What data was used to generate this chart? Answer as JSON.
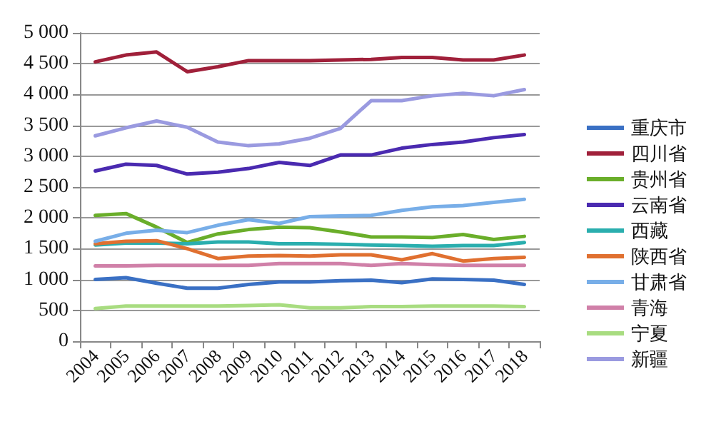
{
  "chart_data": {
    "type": "line",
    "categories": [
      "2004",
      "2005",
      "2006",
      "2007",
      "2008",
      "2009",
      "2010",
      "2011",
      "2012",
      "2013",
      "2014",
      "2015",
      "2016",
      "2017",
      "2018"
    ],
    "series": [
      {
        "name": "重庆市",
        "color": "#3a70c4",
        "values": [
          1000,
          1030,
          940,
          860,
          860,
          920,
          960,
          960,
          980,
          990,
          950,
          1010,
          1000,
          990,
          920
        ]
      },
      {
        "name": "四川省",
        "color": "#a0203a",
        "values": [
          4530,
          4640,
          4690,
          4370,
          4450,
          4550,
          4550,
          4550,
          4560,
          4570,
          4600,
          4600,
          4560,
          4560,
          4640
        ]
      },
      {
        "name": "贵州省",
        "color": "#6aae2a",
        "values": [
          2040,
          2070,
          1850,
          1600,
          1740,
          1810,
          1850,
          1840,
          1770,
          1690,
          1690,
          1680,
          1730,
          1650,
          1700
        ]
      },
      {
        "name": "云南省",
        "color": "#4a2ab0",
        "values": [
          2760,
          2870,
          2850,
          2710,
          2740,
          2800,
          2900,
          2850,
          3020,
          3020,
          3130,
          3190,
          3230,
          3300,
          3350
        ]
      },
      {
        "name": "西藏",
        "color": "#2aaeae",
        "values": [
          1560,
          1590,
          1590,
          1580,
          1610,
          1610,
          1580,
          1580,
          1570,
          1560,
          1550,
          1540,
          1550,
          1550,
          1600
        ]
      },
      {
        "name": "陕西省",
        "color": "#e07030",
        "values": [
          1580,
          1620,
          1630,
          1500,
          1340,
          1380,
          1390,
          1380,
          1400,
          1400,
          1320,
          1420,
          1300,
          1340,
          1360
        ]
      },
      {
        "name": "甘肃省",
        "color": "#78aee8",
        "values": [
          1620,
          1750,
          1800,
          1760,
          1880,
          1970,
          1910,
          2020,
          2030,
          2040,
          2120,
          2180,
          2200,
          2250,
          2300
        ]
      },
      {
        "name": "青海",
        "color": "#d080a8",
        "values": [
          1220,
          1220,
          1230,
          1230,
          1230,
          1230,
          1260,
          1260,
          1260,
          1230,
          1260,
          1240,
          1230,
          1230,
          1230
        ]
      },
      {
        "name": "宁夏",
        "color": "#a8dc80",
        "values": [
          530,
          570,
          570,
          570,
          570,
          580,
          590,
          540,
          540,
          560,
          560,
          570,
          570,
          570,
          560
        ]
      },
      {
        "name": "新疆",
        "color": "#9a9ae0",
        "values": [
          3330,
          3460,
          3570,
          3470,
          3230,
          3170,
          3200,
          3290,
          3450,
          3900,
          3900,
          3980,
          4020,
          3980,
          4080
        ]
      }
    ],
    "ylim": [
      0,
      5000
    ],
    "yticks": [
      0,
      500,
      {
        "value": 1000,
        "label": "1 000"
      },
      {
        "value": 1500,
        "label": "1 500"
      },
      {
        "value": 2000,
        "label": "2 000"
      },
      {
        "value": 2500,
        "label": "2 500"
      },
      {
        "value": 3000,
        "label": "3 000"
      },
      {
        "value": 3500,
        "label": "3 500"
      },
      {
        "value": 4000,
        "label": "4 000"
      },
      {
        "value": 4500,
        "label": "4 500"
      },
      {
        "value": 5000,
        "label": "5 000"
      }
    ],
    "grid": "y",
    "legend": "right",
    "marker": "none",
    "line_style": "solid"
  }
}
